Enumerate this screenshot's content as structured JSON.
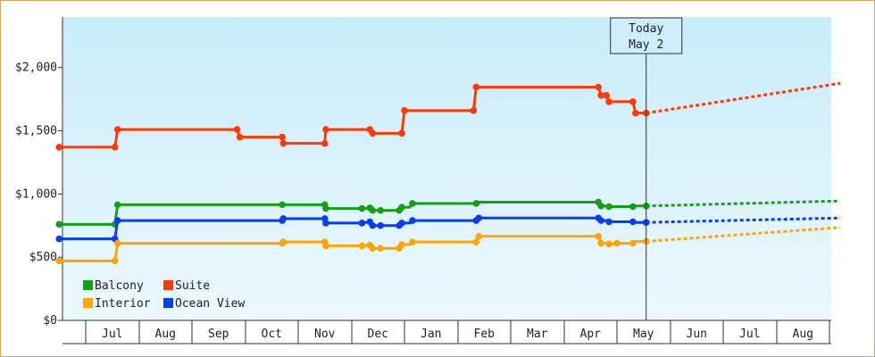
{
  "chart_data": {
    "type": "line",
    "title": "",
    "xlabel": "",
    "ylabel": "",
    "ylim": [
      0,
      2400
    ],
    "y_ticks": [
      {
        "value": 0,
        "label": "$0"
      },
      {
        "value": 500,
        "label": "$500"
      },
      {
        "value": 1000,
        "label": "$1,000"
      },
      {
        "value": 1500,
        "label": "$1,500"
      },
      {
        "value": 2000,
        "label": "$2,000"
      }
    ],
    "x_months": [
      "Jul",
      "Aug",
      "Sep",
      "Oct",
      "Nov",
      "Dec",
      "Jan",
      "Feb",
      "Mar",
      "Apr",
      "May",
      "Jun",
      "Jul",
      "Aug"
    ],
    "today": {
      "line1": "Today",
      "line2": "May 2",
      "x": 10.55
    },
    "grid": false,
    "legend": "bottom-left",
    "background_gradient": [
      "#c8ecfa",
      "#ecf8fe"
    ],
    "series": [
      {
        "name": "Suite",
        "color": "#ff3a00",
        "points": [
          [
            -0.5,
            1370
          ],
          [
            0.55,
            1370
          ],
          [
            0.6,
            1510
          ],
          [
            2.85,
            1510
          ],
          [
            2.9,
            1450
          ],
          [
            3.7,
            1450
          ],
          [
            3.72,
            1400
          ],
          [
            4.5,
            1400
          ],
          [
            4.52,
            1510
          ],
          [
            5.35,
            1510
          ],
          [
            5.4,
            1480
          ],
          [
            5.95,
            1480
          ],
          [
            6.0,
            1660
          ],
          [
            7.3,
            1660
          ],
          [
            7.35,
            1845
          ],
          [
            9.65,
            1845
          ],
          [
            9.7,
            1780
          ],
          [
            9.8,
            1780
          ],
          [
            9.85,
            1730
          ],
          [
            10.3,
            1730
          ],
          [
            10.35,
            1640
          ],
          [
            10.55,
            1640
          ]
        ],
        "markers": [
          [
            -0.5,
            1370
          ],
          [
            0.55,
            1370
          ],
          [
            0.6,
            1510
          ],
          [
            2.85,
            1510
          ],
          [
            2.9,
            1450
          ],
          [
            3.7,
            1450
          ],
          [
            3.72,
            1400
          ],
          [
            4.5,
            1400
          ],
          [
            4.52,
            1510
          ],
          [
            5.35,
            1510
          ],
          [
            5.4,
            1480
          ],
          [
            5.95,
            1480
          ],
          [
            6.0,
            1660
          ],
          [
            7.3,
            1660
          ],
          [
            7.35,
            1845
          ],
          [
            9.65,
            1845
          ],
          [
            9.7,
            1780
          ],
          [
            9.8,
            1780
          ],
          [
            9.85,
            1730
          ],
          [
            10.3,
            1730
          ],
          [
            10.35,
            1640
          ],
          [
            10.55,
            1640
          ]
        ],
        "forecast": [
          [
            10.55,
            1640
          ],
          [
            14.2,
            1875
          ]
        ]
      },
      {
        "name": "Balcony",
        "color": "#14a014",
        "points": [
          [
            -0.5,
            760
          ],
          [
            0.55,
            760
          ],
          [
            0.6,
            915
          ],
          [
            3.7,
            915
          ],
          [
            4.5,
            915
          ],
          [
            4.52,
            885
          ],
          [
            5.2,
            885
          ],
          [
            5.35,
            890
          ],
          [
            5.4,
            870
          ],
          [
            5.55,
            870
          ],
          [
            5.6,
            870
          ],
          [
            5.9,
            870
          ],
          [
            5.95,
            895
          ],
          [
            6.1,
            895
          ],
          [
            6.15,
            925
          ],
          [
            7.35,
            925
          ],
          [
            7.4,
            935
          ],
          [
            9.65,
            935
          ],
          [
            9.7,
            905
          ],
          [
            9.8,
            905
          ],
          [
            9.85,
            900
          ],
          [
            10.3,
            900
          ],
          [
            10.35,
            905
          ],
          [
            10.55,
            905
          ]
        ],
        "markers": [
          [
            -0.5,
            760
          ],
          [
            0.55,
            760
          ],
          [
            0.6,
            915
          ],
          [
            3.7,
            915
          ],
          [
            4.5,
            915
          ],
          [
            4.52,
            885
          ],
          [
            5.2,
            885
          ],
          [
            5.35,
            890
          ],
          [
            5.4,
            870
          ],
          [
            5.55,
            870
          ],
          [
            5.9,
            870
          ],
          [
            5.95,
            895
          ],
          [
            6.15,
            925
          ],
          [
            7.35,
            925
          ],
          [
            9.65,
            935
          ],
          [
            9.7,
            905
          ],
          [
            9.85,
            900
          ],
          [
            10.3,
            900
          ],
          [
            10.55,
            905
          ]
        ],
        "forecast": [
          [
            10.55,
            905
          ],
          [
            14.2,
            945
          ]
        ]
      },
      {
        "name": "Ocean View",
        "color": "#0a3cf0",
        "points": [
          [
            -0.5,
            645
          ],
          [
            0.55,
            645
          ],
          [
            0.6,
            790
          ],
          [
            3.7,
            790
          ],
          [
            3.72,
            805
          ],
          [
            4.5,
            805
          ],
          [
            4.52,
            770
          ],
          [
            5.2,
            770
          ],
          [
            5.35,
            780
          ],
          [
            5.4,
            750
          ],
          [
            5.55,
            750
          ],
          [
            5.9,
            750
          ],
          [
            5.95,
            770
          ],
          [
            6.1,
            770
          ],
          [
            6.15,
            790
          ],
          [
            7.35,
            790
          ],
          [
            7.4,
            810
          ],
          [
            9.65,
            810
          ],
          [
            9.7,
            790
          ],
          [
            9.8,
            790
          ],
          [
            9.85,
            780
          ],
          [
            10.3,
            780
          ],
          [
            10.35,
            775
          ],
          [
            10.55,
            775
          ]
        ],
        "markers": [
          [
            -0.5,
            645
          ],
          [
            0.55,
            645
          ],
          [
            0.6,
            790
          ],
          [
            3.7,
            790
          ],
          [
            3.72,
            805
          ],
          [
            4.5,
            805
          ],
          [
            4.52,
            770
          ],
          [
            5.2,
            770
          ],
          [
            5.35,
            780
          ],
          [
            5.4,
            750
          ],
          [
            5.55,
            750
          ],
          [
            5.9,
            750
          ],
          [
            5.95,
            770
          ],
          [
            6.15,
            790
          ],
          [
            7.35,
            790
          ],
          [
            7.4,
            810
          ],
          [
            9.65,
            810
          ],
          [
            9.7,
            790
          ],
          [
            9.85,
            780
          ],
          [
            10.3,
            780
          ],
          [
            10.55,
            775
          ]
        ],
        "forecast": [
          [
            10.55,
            775
          ],
          [
            14.2,
            810
          ]
        ]
      },
      {
        "name": "Interior",
        "color": "#ffa500",
        "points": [
          [
            -0.5,
            470
          ],
          [
            0.55,
            470
          ],
          [
            0.6,
            610
          ],
          [
            3.7,
            610
          ],
          [
            3.72,
            620
          ],
          [
            4.5,
            620
          ],
          [
            4.52,
            590
          ],
          [
            5.2,
            590
          ],
          [
            5.35,
            595
          ],
          [
            5.4,
            570
          ],
          [
            5.55,
            570
          ],
          [
            5.9,
            570
          ],
          [
            5.95,
            600
          ],
          [
            6.1,
            600
          ],
          [
            6.15,
            620
          ],
          [
            7.35,
            620
          ],
          [
            7.4,
            665
          ],
          [
            9.65,
            665
          ],
          [
            9.7,
            610
          ],
          [
            9.8,
            610
          ],
          [
            9.85,
            605
          ],
          [
            10.0,
            605
          ],
          [
            10.05,
            610
          ],
          [
            10.3,
            610
          ],
          [
            10.35,
            625
          ],
          [
            10.55,
            625
          ]
        ],
        "markers": [
          [
            -0.5,
            470
          ],
          [
            0.55,
            470
          ],
          [
            0.6,
            610
          ],
          [
            3.7,
            610
          ],
          [
            3.72,
            620
          ],
          [
            4.5,
            620
          ],
          [
            4.52,
            590
          ],
          [
            5.2,
            590
          ],
          [
            5.35,
            595
          ],
          [
            5.4,
            570
          ],
          [
            5.55,
            570
          ],
          [
            5.9,
            570
          ],
          [
            5.95,
            600
          ],
          [
            6.15,
            620
          ],
          [
            7.35,
            620
          ],
          [
            7.4,
            665
          ],
          [
            9.65,
            665
          ],
          [
            9.7,
            610
          ],
          [
            9.85,
            605
          ],
          [
            10.0,
            610
          ],
          [
            10.3,
            610
          ],
          [
            10.55,
            625
          ]
        ],
        "forecast": [
          [
            10.55,
            625
          ],
          [
            14.2,
            735
          ]
        ]
      }
    ]
  }
}
